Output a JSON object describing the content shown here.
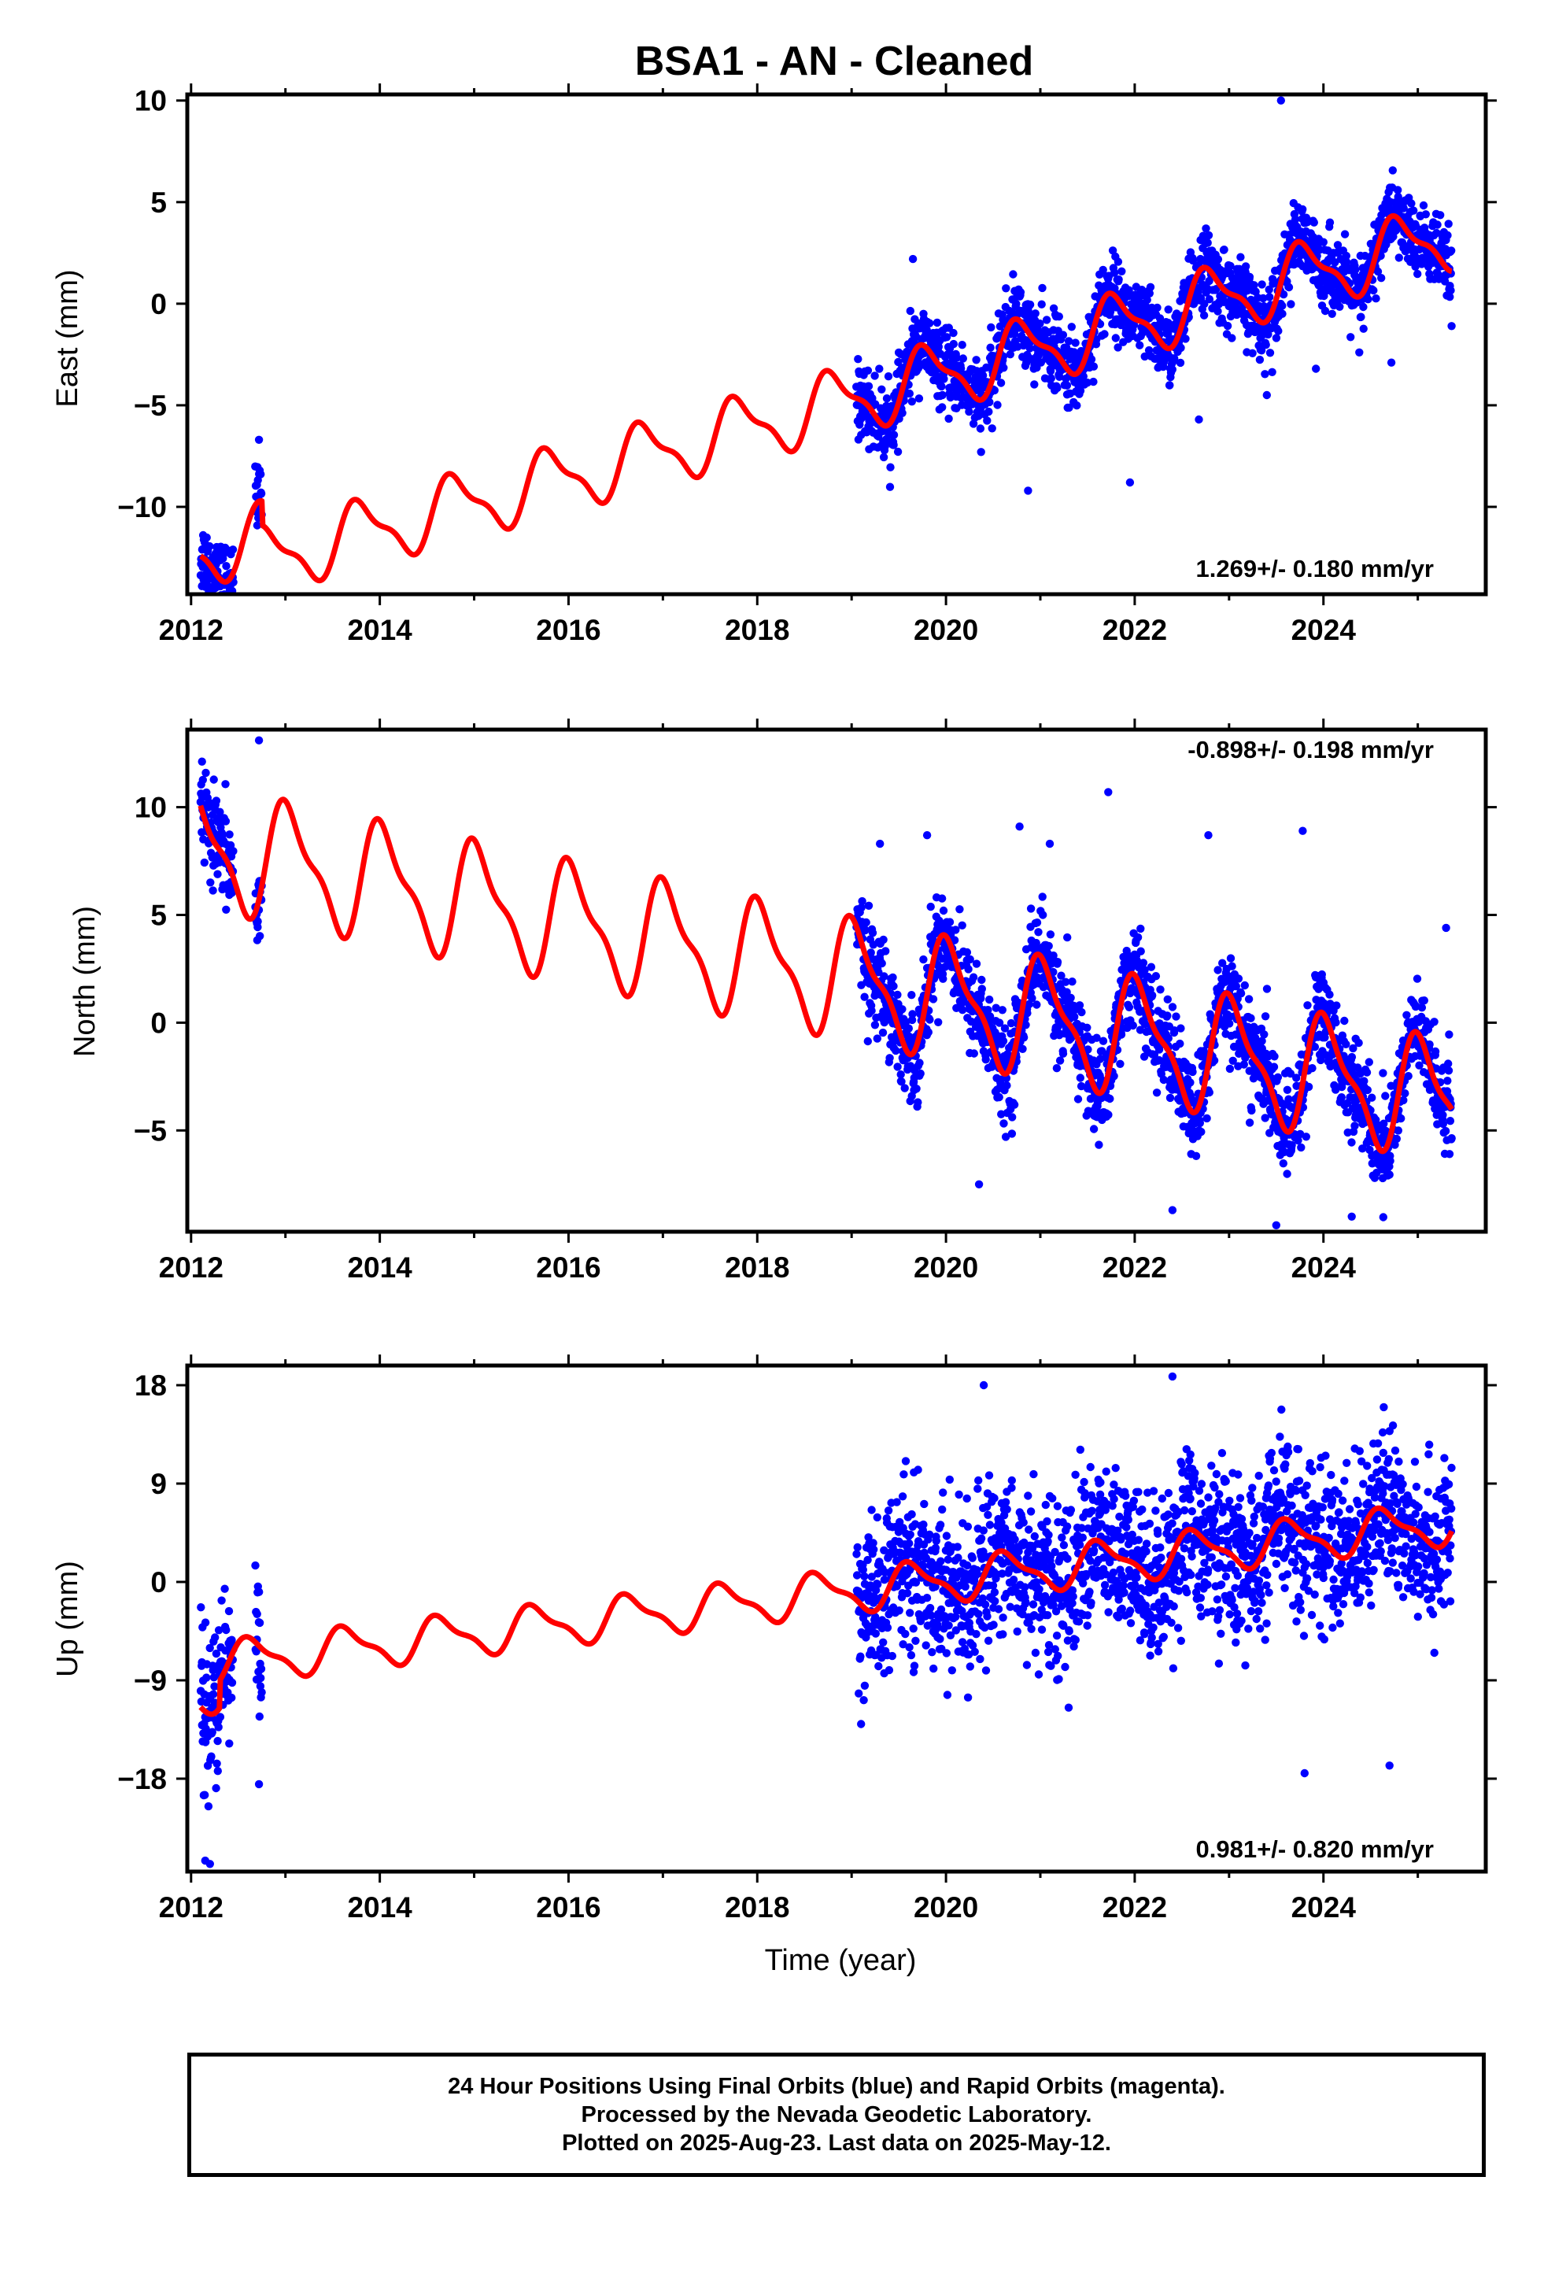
{
  "title": "BSA1  - AN - Cleaned",
  "colors": {
    "final_orbits": "#0000ff",
    "model": "#ff0000",
    "frame": "#000000"
  },
  "caption": {
    "line1": "24 Hour Positions Using Final Orbits (blue) and Rapid Orbits (magenta).",
    "line2": "Processed by the Nevada Geodetic Laboratory.",
    "line3": "Plotted on 2025-Aug-23. Last data on 2025-May-12."
  },
  "chart_data": [
    {
      "type": "scatter",
      "component": "east",
      "ylabel": "East (mm)",
      "xlabel": "",
      "xlim": [
        2011.96,
        2025.72
      ],
      "ylim": [
        -14.3,
        10.3
      ],
      "xticks": [
        2012,
        2014,
        2016,
        2018,
        2020,
        2022,
        2024
      ],
      "yticks": [
        -10,
        -5,
        0,
        5,
        10
      ],
      "ytick_labels": [
        "−10",
        "−5",
        "0",
        "5",
        "10"
      ],
      "rate_text": "1.269+/- 0.180 mm/yr",
      "rate_position": "bottom-right",
      "trend": {
        "rate": 1.269,
        "at_2012": -12.4
      },
      "seasonal": {
        "amplitude": 1.5,
        "phase_year": 0.55
      },
      "jumps": [
        {
          "epoch": 2012.75,
          "size": -1.2
        }
      ],
      "scatter_sigma": 0.9,
      "outliers": [
        [
          2019.65,
          2.2
        ],
        [
          2020.87,
          -9.2
        ],
        [
          2021.95,
          -8.8
        ],
        [
          2022.68,
          -5.7
        ],
        [
          2023.4,
          -4.5
        ],
        [
          2023.55,
          10.0
        ],
        [
          2023.92,
          -3.2
        ],
        [
          2024.38,
          -2.4
        ],
        [
          2024.72,
          -2.9
        ],
        [
          2012.72,
          -6.7
        ]
      ],
      "series": [
        {
          "name": "Final Orbits",
          "marker": "dot",
          "color": "#0000ff",
          "segments": [
            [
              2012.1,
              2012.45
            ],
            [
              2012.68,
              2012.75
            ],
            [
              2019.05,
              2025.36
            ]
          ]
        },
        {
          "name": "Model",
          "style": "line",
          "color": "#ff0000",
          "x_range": [
            2012.1,
            2025.36
          ]
        }
      ]
    },
    {
      "type": "scatter",
      "component": "north",
      "ylabel": "North (mm)",
      "xlabel": "",
      "xlim": [
        2011.96,
        2025.72
      ],
      "ylim": [
        -9.7,
        13.6
      ],
      "xticks": [
        2012,
        2014,
        2016,
        2018,
        2020,
        2022,
        2024
      ],
      "yticks": [
        -5,
        0,
        5,
        10
      ],
      "ytick_labels": [
        "−5",
        "0",
        "5",
        "10"
      ],
      "rate_text": "-0.898+/- 0.198 mm/yr",
      "rate_position": "top-right",
      "trend": {
        "rate": -0.898,
        "at_2012": 8.3
      },
      "seasonal": {
        "amplitude": 2.5,
        "phase_year": 0.8
      },
      "jumps": [],
      "scatter_sigma": 1.1,
      "outliers": [
        [
          2012.72,
          13.1
        ],
        [
          2019.3,
          8.3
        ],
        [
          2019.8,
          8.7
        ],
        [
          2020.35,
          -7.5
        ],
        [
          2020.78,
          9.1
        ],
        [
          2021.1,
          8.3
        ],
        [
          2021.72,
          10.7
        ],
        [
          2022.4,
          -8.7
        ],
        [
          2022.78,
          8.7
        ],
        [
          2023.78,
          8.9
        ],
        [
          2023.5,
          -9.4
        ],
        [
          2024.3,
          -9.0
        ],
        [
          2025.3,
          4.4
        ]
      ],
      "series": [
        {
          "name": "Final Orbits",
          "marker": "dot",
          "color": "#0000ff",
          "segments": [
            [
              2012.1,
              2012.45
            ],
            [
              2012.68,
              2012.75
            ],
            [
              2019.05,
              2025.36
            ]
          ]
        },
        {
          "name": "Model",
          "style": "line",
          "color": "#ff0000",
          "x_range": [
            2012.1,
            2025.36
          ]
        }
      ]
    },
    {
      "type": "scatter",
      "component": "up",
      "ylabel": "Up (mm)",
      "xlabel": "Time (year)",
      "xlim": [
        2011.96,
        2025.72
      ],
      "ylim": [
        -26.5,
        19.8
      ],
      "xticks": [
        2012,
        2014,
        2016,
        2018,
        2020,
        2022,
        2024
      ],
      "yticks": [
        -18,
        -9,
        0,
        9,
        18
      ],
      "ytick_labels": [
        "−18",
        "−9",
        "0",
        "9",
        "18"
      ],
      "rate_text": "0.981+/- 0.820 mm/yr",
      "rate_position": "bottom-right",
      "trend": {
        "rate": 0.981,
        "at_2012": -10.2
      },
      "seasonal": {
        "amplitude": 1.8,
        "phase_year": 0.4
      },
      "jumps": [
        {
          "epoch": 2012.3,
          "size": 2.5
        }
      ],
      "scatter_sigma": 3.6,
      "outliers": [
        [
          2012.15,
          -25.5
        ],
        [
          2012.2,
          -25.8
        ],
        [
          2012.72,
          -18.5
        ],
        [
          2020.4,
          18.0
        ],
        [
          2021.3,
          -11.5
        ],
        [
          2022.4,
          18.8
        ],
        [
          2023.45,
          11.8
        ],
        [
          2023.8,
          -17.5
        ],
        [
          2024.7,
          -16.8
        ],
        [
          2019.1,
          -13.0
        ]
      ],
      "series": [
        {
          "name": "Final Orbits",
          "marker": "dot",
          "color": "#0000ff",
          "segments": [
            [
              2012.1,
              2012.45
            ],
            [
              2012.68,
              2012.75
            ],
            [
              2019.05,
              2025.36
            ]
          ]
        },
        {
          "name": "Model",
          "style": "line",
          "color": "#ff0000",
          "x_range": [
            2012.1,
            2025.36
          ]
        }
      ]
    }
  ]
}
